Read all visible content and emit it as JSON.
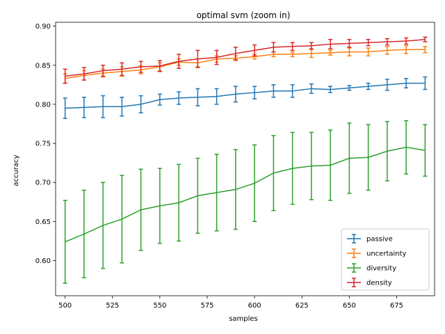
{
  "chart_data": {
    "type": "line",
    "title": "optimal svm (zoom in)",
    "xlabel": "samples",
    "ylabel": "accuracy",
    "xlim": [
      495,
      695
    ],
    "ylim": [
      0.555,
      0.905
    ],
    "xticks": [
      500,
      525,
      550,
      575,
      600,
      625,
      650,
      675
    ],
    "yticks": [
      0.6,
      0.65,
      0.7,
      0.75,
      0.8,
      0.85,
      0.9
    ],
    "legend_position": "lower-right",
    "x": [
      500,
      510,
      520,
      530,
      540,
      550,
      560,
      570,
      580,
      590,
      600,
      610,
      620,
      630,
      640,
      650,
      660,
      670,
      680,
      690
    ],
    "series": [
      {
        "name": "passive",
        "color": "#1f77b4",
        "values": [
          0.795,
          0.796,
          0.797,
          0.797,
          0.8,
          0.806,
          0.808,
          0.809,
          0.81,
          0.813,
          0.815,
          0.817,
          0.817,
          0.82,
          0.819,
          0.821,
          0.823,
          0.825,
          0.827,
          0.827
        ],
        "errors": [
          0.013,
          0.013,
          0.014,
          0.012,
          0.011,
          0.007,
          0.008,
          0.011,
          0.01,
          0.01,
          0.008,
          0.008,
          0.008,
          0.006,
          0.004,
          0.003,
          0.004,
          0.007,
          0.006,
          0.008
        ]
      },
      {
        "name": "uncertainty",
        "color": "#ff7f0e",
        "values": [
          0.833,
          0.837,
          0.84,
          0.842,
          0.844,
          0.848,
          0.854,
          0.853,
          0.858,
          0.859,
          0.861,
          0.864,
          0.864,
          0.865,
          0.866,
          0.867,
          0.867,
          0.869,
          0.87,
          0.87
        ],
        "errors": [
          0.006,
          0.006,
          0.005,
          0.006,
          0.005,
          0.005,
          0.004,
          0.005,
          0.004,
          0.003,
          0.003,
          0.003,
          0.003,
          0.005,
          0.003,
          0.005,
          0.005,
          0.005,
          0.005,
          0.004
        ]
      },
      {
        "name": "diversity",
        "color": "#2ca02c",
        "values": [
          0.624,
          0.634,
          0.645,
          0.653,
          0.665,
          0.67,
          0.674,
          0.683,
          0.687,
          0.691,
          0.699,
          0.712,
          0.718,
          0.721,
          0.722,
          0.731,
          0.732,
          0.74,
          0.745,
          0.741
        ],
        "errors": [
          0.053,
          0.056,
          0.055,
          0.056,
          0.052,
          0.048,
          0.049,
          0.048,
          0.049,
          0.051,
          0.049,
          0.048,
          0.046,
          0.043,
          0.045,
          0.045,
          0.042,
          0.038,
          0.034,
          0.033
        ]
      },
      {
        "name": "density",
        "color": "#d62728",
        "values": [
          0.836,
          0.839,
          0.843,
          0.845,
          0.848,
          0.849,
          0.855,
          0.858,
          0.86,
          0.865,
          0.869,
          0.873,
          0.874,
          0.875,
          0.877,
          0.878,
          0.879,
          0.88,
          0.881,
          0.883
        ],
        "errors": [
          0.009,
          0.008,
          0.007,
          0.008,
          0.007,
          0.007,
          0.009,
          0.011,
          0.009,
          0.008,
          0.007,
          0.006,
          0.005,
          0.004,
          0.006,
          0.005,
          0.004,
          0.004,
          0.004,
          0.003
        ]
      }
    ]
  }
}
